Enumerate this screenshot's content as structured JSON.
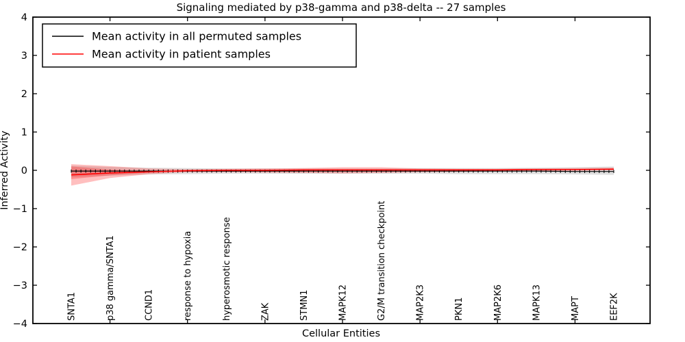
{
  "figure": {
    "title": "Signaling mediated by p38-gamma and p38-delta -- 27 samples",
    "xlabel": "Cellular Entities",
    "ylabel": "Inferred Activity"
  },
  "legend": {
    "position": "upper left",
    "entries": [
      {
        "label": "Mean activity in all permuted samples",
        "color": "#000000"
      },
      {
        "label": "Mean activity in patient samples",
        "color": "#ff0000"
      }
    ]
  },
  "chart_data": {
    "type": "line",
    "title": "Signaling mediated by p38-gamma and p38-delta -- 27 samples",
    "xlabel": "Cellular Entities",
    "ylabel": "Inferred Activity",
    "ylim": [
      -4,
      4
    ],
    "yticks": [
      4,
      3,
      2,
      1,
      0,
      -1,
      -2,
      -3,
      -4
    ],
    "ytick_labels": [
      "4",
      "3",
      "2",
      "1",
      "0",
      "−1",
      "−2",
      "−3",
      "−4"
    ],
    "xtick_entity_indices": [
      1,
      3,
      5,
      7,
      9,
      11,
      13
    ],
    "grid": false,
    "legend_position": "upper left",
    "categories": [
      "SNTA1",
      "p38 gamma/SNTA1",
      "CCND1",
      "response to hypoxia",
      "hyperosmotic response",
      "ZAK",
      "STMN1",
      "MAPK12",
      "G2/M transition checkpoint",
      "MAP2K3",
      "PKN1",
      "MAP2K6",
      "MAPK13",
      "MAPT",
      "EEF2K"
    ],
    "series": [
      {
        "name": "Mean activity in all permuted samples",
        "color": "#000000",
        "marker": "|",
        "values": [
          -0.02,
          -0.02,
          -0.02,
          -0.02,
          -0.02,
          -0.02,
          -0.02,
          -0.02,
          -0.02,
          -0.02,
          -0.02,
          -0.02,
          -0.02,
          -0.03,
          -0.03
        ],
        "band": {
          "upper": [
            0.12,
            0.09,
            0.07,
            0.06,
            0.05,
            0.05,
            0.05,
            0.05,
            0.05,
            0.06,
            0.06,
            0.06,
            0.07,
            0.08,
            0.1
          ],
          "lower": [
            -0.18,
            -0.14,
            -0.11,
            -0.1,
            -0.09,
            -0.09,
            -0.09,
            -0.09,
            -0.09,
            -0.09,
            -0.1,
            -0.1,
            -0.1,
            -0.11,
            -0.12
          ],
          "color": "#000000",
          "alpha": 0.12
        }
      },
      {
        "name": "Mean activity in patient samples",
        "color": "#ff0000",
        "marker": "none",
        "values": [
          -0.12,
          -0.07,
          -0.04,
          -0.01,
          0.0,
          0.0,
          0.01,
          0.01,
          0.01,
          0.01,
          0.01,
          0.01,
          0.02,
          0.02,
          0.03
        ],
        "band": {
          "upper": [
            0.16,
            0.11,
            0.05,
            0.03,
            0.04,
            0.05,
            0.06,
            0.08,
            0.08,
            0.05,
            0.04,
            0.04,
            0.05,
            0.06,
            0.07
          ],
          "lower": [
            -0.4,
            -0.2,
            -0.1,
            -0.05,
            -0.05,
            -0.06,
            -0.07,
            -0.08,
            -0.07,
            -0.05,
            -0.04,
            -0.03,
            -0.02,
            -0.01,
            0.0
          ],
          "color": "#ff0000",
          "alpha": 0.25
        },
        "inner_band": {
          "upper": [
            0.1,
            0.02,
            -0.03,
            -0.01
          ],
          "lower": [
            -0.23,
            -0.13,
            -0.06,
            -0.01
          ],
          "color": "#ff0000",
          "alpha": 0.25
        }
      }
    ]
  }
}
